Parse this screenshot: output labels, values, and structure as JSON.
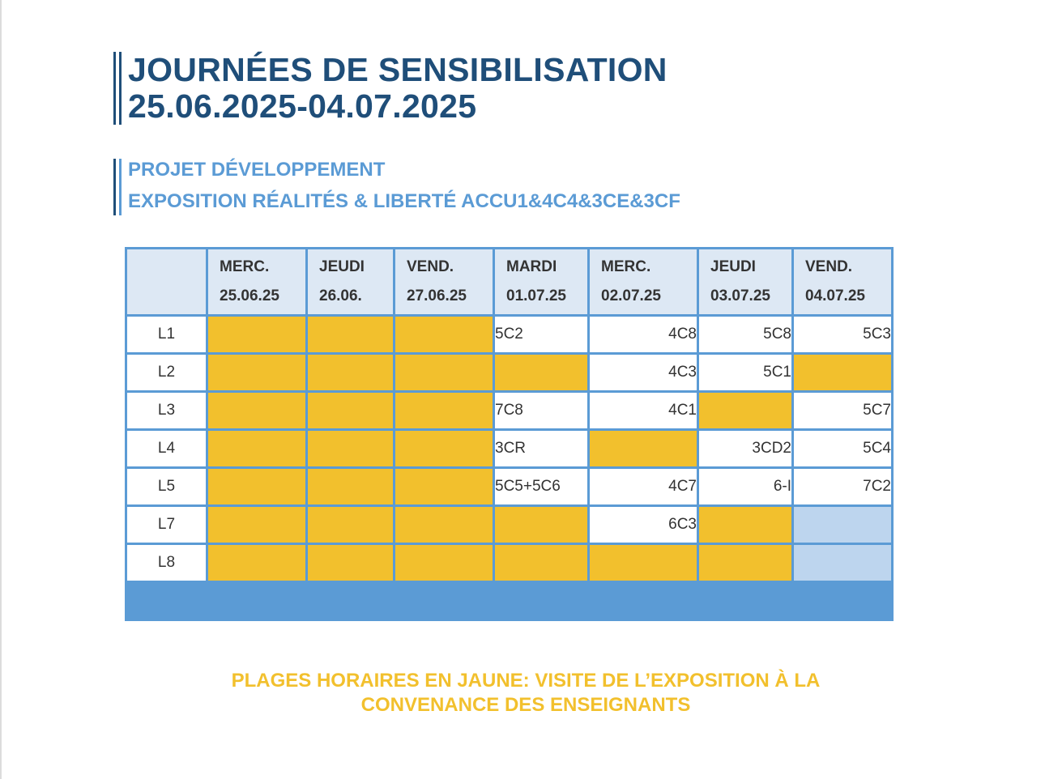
{
  "title": {
    "line1": "JOURNÉES DE SENSIBILISATION",
    "line2": "25.06.2025-04.07.2025"
  },
  "subtitle": {
    "line1": "PROJET DÉVELOPPEMENT",
    "line2": "EXPOSITION RÉALITÉS & LIBERTÉ ACCU1&4C4&3CE&3CF"
  },
  "schedule": {
    "columns": [
      {
        "day": "MERC.",
        "date": "25.06.25"
      },
      {
        "day": "JEUDI",
        "date": "26.06."
      },
      {
        "day": "VEND.",
        "date": "27.06.25"
      },
      {
        "day": "MARDI",
        "date": "01.07.25"
      },
      {
        "day": "MERC.",
        "date": "02.07.25"
      },
      {
        "day": "JEUDI",
        "date": "03.07.25"
      },
      {
        "day": "VEND.",
        "date": "04.07.25"
      }
    ],
    "rows": [
      {
        "lesson": "L1",
        "cells": [
          "",
          "",
          "",
          "5C2",
          "4C8",
          "5C8",
          "5C3"
        ]
      },
      {
        "lesson": "L2",
        "cells": [
          "",
          "",
          "",
          "",
          "4C3",
          "5C1",
          ""
        ]
      },
      {
        "lesson": "L3",
        "cells": [
          "",
          "",
          "",
          "7C8",
          "4C1",
          "",
          "5C7"
        ]
      },
      {
        "lesson": "L4",
        "cells": [
          "",
          "",
          "",
          "3CR",
          "",
          "3CD2",
          "5C4"
        ]
      },
      {
        "lesson": "L5",
        "cells": [
          "",
          "",
          "",
          "5C5+5C6",
          "4C7",
          "6-I",
          "7C2"
        ]
      },
      {
        "lesson": "L7",
        "cells": [
          "",
          "",
          "",
          "",
          "6C3",
          "",
          ""
        ]
      },
      {
        "lesson": "L8",
        "cells": [
          "",
          "",
          "",
          "",
          "",
          "",
          ""
        ]
      }
    ],
    "cell_status": [
      [
        "available",
        "available",
        "available",
        "booked",
        "booked",
        "booked",
        "booked"
      ],
      [
        "available",
        "available",
        "available",
        "available",
        "booked",
        "booked",
        "available"
      ],
      [
        "available",
        "available",
        "available",
        "booked",
        "booked",
        "available",
        "booked"
      ],
      [
        "available",
        "available",
        "available",
        "booked",
        "available",
        "booked",
        "booked"
      ],
      [
        "available",
        "available",
        "available",
        "booked",
        "booked",
        "booked",
        "booked"
      ],
      [
        "available",
        "available",
        "available",
        "available",
        "booked",
        "available",
        "unavailable"
      ],
      [
        "available",
        "available",
        "available",
        "available",
        "available",
        "available",
        "unavailable"
      ]
    ]
  },
  "note": "PLAGES HORAIRES EN JAUNE: VISITE DE L’EXPOSITION À LA CONVENANCE DES ENSEIGNANTS",
  "colors": {
    "title": "#1f4e79",
    "subtitle": "#5b9bd5",
    "available": "#f2c02d",
    "unavailable": "#bdd5ee",
    "header_bg": "#dde8f4",
    "border": "#5b9bd5"
  }
}
